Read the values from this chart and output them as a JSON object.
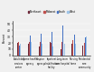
{
  "regions": [
    "Northeast",
    "Midwest",
    "South",
    "West"
  ],
  "region_colors": [
    "#6b2737",
    "#c0504d",
    "#4472c4",
    "#9dc3e6"
  ],
  "settings": [
    "Adult day\nservices\ncenter",
    "Home health\nagency",
    "Hospice\nagency",
    "Inpatient\nrehab.\nfacility",
    "Long-term\ncare\nhospital",
    "Nursing\nhome",
    "Residential\ncare\ncommunity"
  ],
  "settings_short": [
    "Adult day\nservices center",
    "Home health\nagency",
    "Hospice\nagency",
    "Inpatient\nrehabilitation\nfacility",
    "Long-term\ncare hospital",
    "Nursing\nhome",
    "Residential\ncare community"
  ],
  "data_by_setting_by_region": [
    [
      20,
      22,
      16,
      18
    ],
    [
      18,
      22,
      32,
      22
    ],
    [
      15,
      22,
      35,
      18
    ],
    [
      22,
      20,
      38,
      15
    ],
    [
      10,
      22,
      48,
      18
    ],
    [
      18,
      25,
      33,
      18
    ],
    [
      16,
      20,
      28,
      30
    ]
  ],
  "ylim": [
    0,
    55
  ],
  "ylabel": "Percent",
  "yticks": [
    0,
    10,
    20,
    30,
    40,
    50
  ],
  "group_labels": [
    "Adult day\nservices\ncenter",
    "Home health\nagency",
    "Hospice\nagency",
    "Inpatient\nrehabilitation\nfacility",
    "Long-term\ncare hospital",
    "Nursing\nhome",
    "Residential\ncare\ncommunity"
  ],
  "legend_labels": [
    "Northeast",
    "Midwest",
    "South",
    "West"
  ],
  "background_color": "#f0f0f0",
  "plot_bg_color": "#f0f0f0"
}
